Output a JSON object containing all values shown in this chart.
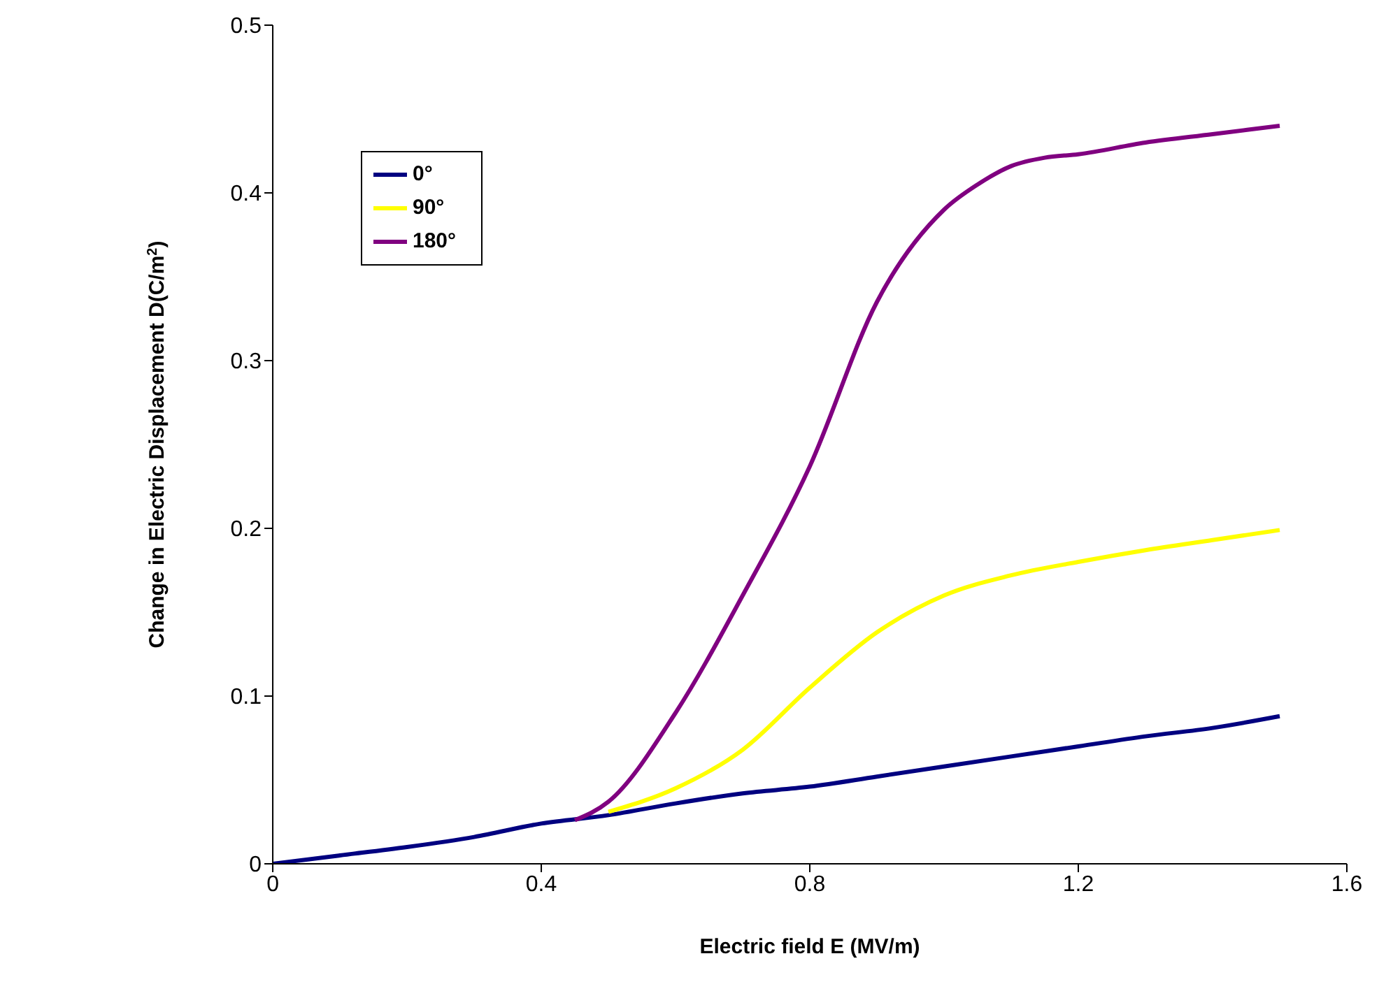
{
  "chart_data": {
    "type": "line",
    "xlabel": "Electric field E (MV/m)",
    "ylabel": "Change in Electric Displacement D(C/m$^{2}$)",
    "xlim": [
      0,
      1.6
    ],
    "xticks": [
      0,
      0.4,
      0.8,
      1.2,
      1.6
    ],
    "ylim": [
      0,
      0.5
    ],
    "yticks": [
      0,
      0.1,
      0.2,
      0.3,
      0.4,
      0.5
    ],
    "grid": false,
    "legend": "top left",
    "marker": "none",
    "line_style": "solid",
    "series": [
      {
        "name": "0°",
        "color": "#000080",
        "x": [
          0,
          0.1,
          0.2,
          0.3,
          0.4,
          0.5,
          0.6,
          0.7,
          0.8,
          0.9,
          1.0,
          1.1,
          1.2,
          1.3,
          1.4,
          1.5
        ],
        "values": [
          0,
          0.005,
          0.01,
          0.016,
          0.024,
          0.029,
          0.036,
          0.042,
          0.046,
          0.052,
          0.058,
          0.064,
          0.07,
          0.076,
          0.081,
          0.088
        ]
      },
      {
        "name": "90°",
        "color": "#ffff00",
        "x": [
          0.5,
          0.6,
          0.7,
          0.8,
          0.9,
          1.0,
          1.1,
          1.2,
          1.3,
          1.4,
          1.5
        ],
        "values": [
          0.031,
          0.045,
          0.068,
          0.105,
          0.138,
          0.16,
          0.172,
          0.18,
          0.187,
          0.193,
          0.199
        ]
      },
      {
        "name": "180°",
        "color": "#800080",
        "x": [
          0.45,
          0.5,
          0.6,
          0.7,
          0.8,
          0.9,
          1.0,
          1.05,
          1.1,
          1.15,
          1.2,
          1.3,
          1.4,
          1.5
        ],
        "values": [
          0.026,
          0.037,
          0.09,
          0.16,
          0.237,
          0.335,
          0.39,
          0.405,
          0.416,
          0.421,
          0.423,
          0.43,
          0.435,
          0.44
        ]
      }
    ]
  }
}
